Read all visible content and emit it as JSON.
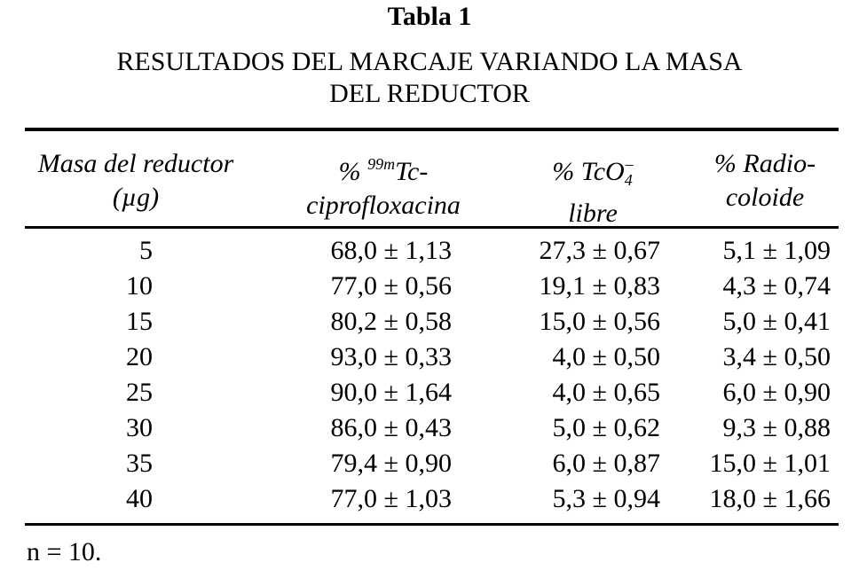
{
  "title": "Tabla 1",
  "subtitle_line1": "RESULTADOS DEL MARCAJE VARIANDO LA MASA",
  "subtitle_line2": "DEL REDUCTOR",
  "headers": {
    "col1_line1": "Masa del reductor",
    "col1_line2": "(µg)",
    "col2_prefix": "% ",
    "col2_sup": "99m",
    "col2_line1": "Tc-",
    "col2_line2": "ciprofloxacina",
    "col3_line1": "% TcO",
    "col3_sub": "4",
    "col3_sup": "–",
    "col3_line2": "libre",
    "col4_line1": "% Radio-",
    "col4_line2": "coloide"
  },
  "rows": [
    {
      "masa": "5",
      "cipro": "68,0 ± 1,13",
      "tco4": "27,3 ± 0,67",
      "coloide": "5,1 ± 1,09"
    },
    {
      "masa": "10",
      "cipro": "77,0 ± 0,56",
      "tco4": "19,1 ± 0,83",
      "coloide": "4,3 ± 0,74"
    },
    {
      "masa": "15",
      "cipro": "80,2 ± 0,58",
      "tco4": "15,0 ± 0,56",
      "coloide": "5,0 ± 0,41"
    },
    {
      "masa": "20",
      "cipro": "93,0 ± 0,33",
      "tco4": "4,0 ± 0,50",
      "coloide": "3,4 ± 0,50"
    },
    {
      "masa": "25",
      "cipro": "90,0 ± 1,64",
      "tco4": "4,0 ± 0,65",
      "coloide": "6,0 ± 0,90"
    },
    {
      "masa": "30",
      "cipro": "86,0 ± 0,43",
      "tco4": "5,0 ± 0,62",
      "coloide": "9,3 ± 0,88"
    },
    {
      "masa": "35",
      "cipro": "79,4 ± 0,90",
      "tco4": "6,0 ± 0,87",
      "coloide": "15,0 ± 1,01"
    },
    {
      "masa": "40",
      "cipro": "77,0 ± 1,03",
      "tco4": "5,3 ± 0,94",
      "coloide": "18,0 ± 1,66"
    }
  ],
  "footnote": "n = 10."
}
